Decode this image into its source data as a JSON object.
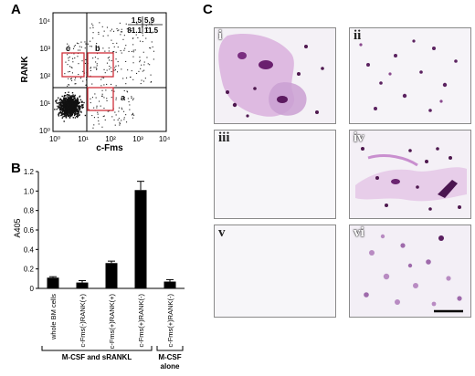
{
  "panels": {
    "a": "A",
    "b": "B",
    "c": "C"
  },
  "flow": {
    "ylabel": "RANK",
    "xlabel": "c-Fms",
    "ticks": [
      "10⁰",
      "10¹",
      "10²",
      "10³",
      "10⁴"
    ],
    "quadrants": {
      "ul": "1.5",
      "ur": "5.9",
      "ll": "81.1",
      "lr": "11.5"
    },
    "gates": [
      "a",
      "b",
      "c"
    ]
  },
  "chart_data": {
    "type": "bar",
    "ylabel": "A405",
    "ylim": [
      0,
      1.2
    ],
    "yticks": [
      "0",
      "0.2",
      "0.4",
      "0.6",
      "0.8",
      "1.0",
      "1.2"
    ],
    "categories": [
      "whole BM cells",
      "c-Fms(-)RANK(+)",
      "c-Fms(+)RANK(+)",
      "c-Fms(+)RANK(-)",
      "c-Fms(+)RANK(-)"
    ],
    "values": [
      0.11,
      0.06,
      0.26,
      1.01,
      0.07
    ],
    "errors": [
      0.01,
      0.02,
      0.02,
      0.09,
      0.02
    ],
    "groups": [
      {
        "label": "M-CSF and sRANKL"
      },
      {
        "label": "M-CSF alone"
      }
    ]
  },
  "micrographs": [
    "i",
    "ii",
    "iii",
    "iv",
    "v",
    "vi"
  ]
}
